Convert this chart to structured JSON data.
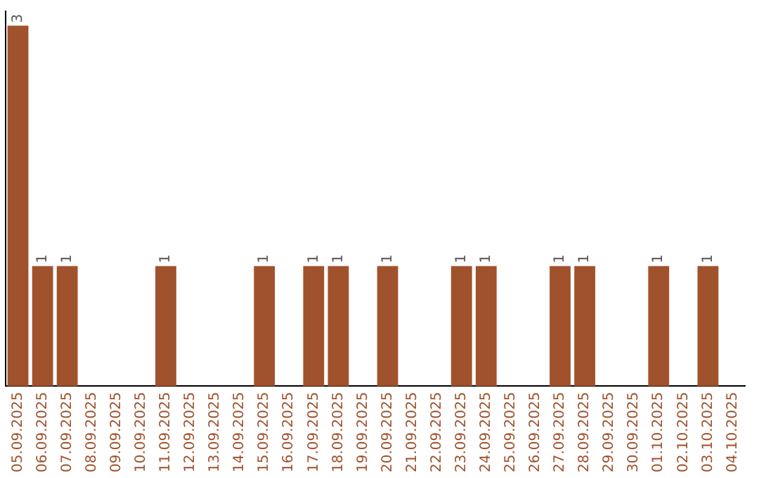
{
  "chart_data": {
    "type": "bar",
    "categories": [
      "05.09.2025",
      "06.09.2025",
      "07.09.2025",
      "08.09.2025",
      "09.09.2025",
      "10.09.2025",
      "11.09.2025",
      "12.09.2025",
      "13.09.2025",
      "14.09.2025",
      "15.09.2025",
      "16.09.2025",
      "17.09.2025",
      "18.09.2025",
      "19.09.2025",
      "20.09.2025",
      "21.09.2025",
      "22.09.2025",
      "23.09.2025",
      "24.09.2025",
      "25.09.2025",
      "26.09.2025",
      "27.09.2025",
      "28.09.2025",
      "29.09.2025",
      "30.09.2025",
      "01.10.2025",
      "02.10.2025",
      "03.10.2025",
      "04.10.2025"
    ],
    "values": [
      3,
      1,
      1,
      0,
      0,
      0,
      1,
      0,
      0,
      0,
      1,
      0,
      1,
      1,
      0,
      1,
      0,
      0,
      1,
      1,
      0,
      0,
      1,
      1,
      0,
      0,
      1,
      0,
      1,
      0
    ],
    "value_labels": [
      "3",
      "1",
      "1",
      null,
      null,
      null,
      "1",
      null,
      null,
      null,
      "1",
      null,
      "1",
      "1",
      null,
      "1",
      null,
      null,
      "1",
      "1",
      null,
      null,
      "1",
      "1",
      null,
      null,
      "1",
      null,
      "1",
      null
    ],
    "color": "#a0522d",
    "ylim": [
      0,
      3.12
    ],
    "grid": false,
    "legend": false,
    "tick_labels": "x"
  }
}
